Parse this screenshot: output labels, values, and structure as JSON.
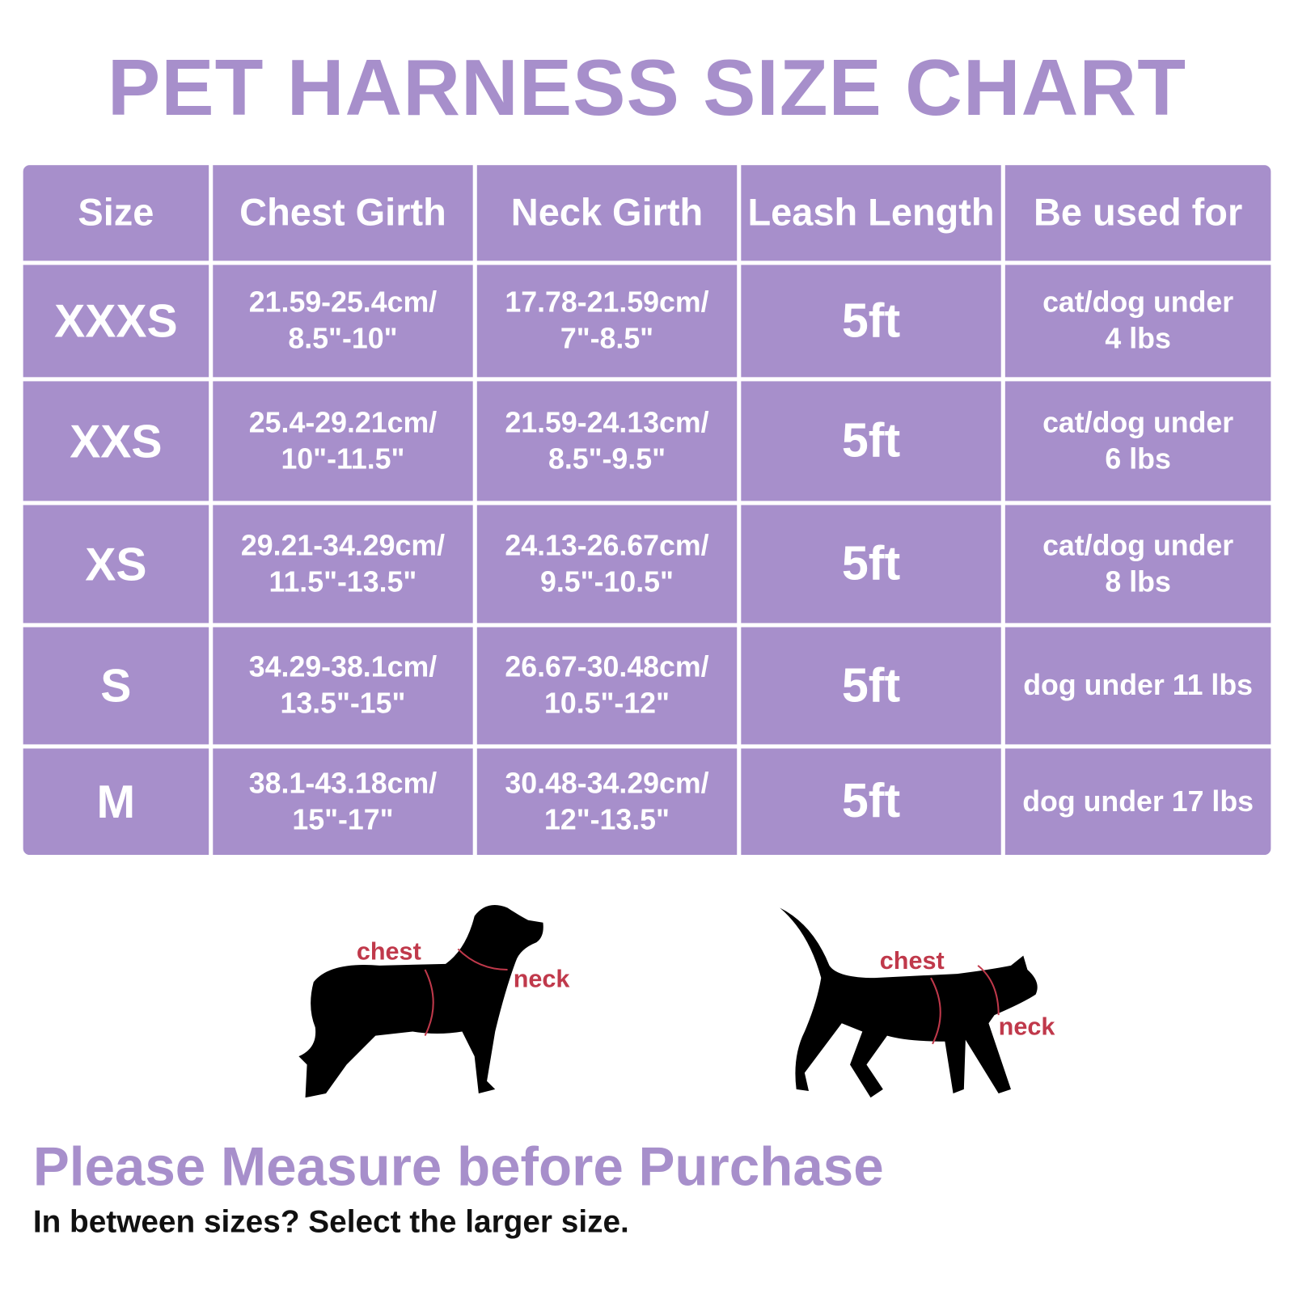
{
  "header": {
    "title": "PET HARNESS SIZE CHART"
  },
  "table": {
    "columns": [
      "Size",
      "Chest Girth",
      "Neck Girth",
      "Leash Length",
      "Be used for"
    ],
    "rows": [
      [
        "XXXS",
        "21.59-25.4cm/\n8.5\"-10\"",
        "17.78-21.59cm/\n7\"-8.5\"",
        "5ft",
        "cat/dog under\n4 lbs"
      ],
      [
        "XXS",
        "25.4-29.21cm/\n10\"-11.5\"",
        "21.59-24.13cm/\n8.5\"-9.5\"",
        "5ft",
        "cat/dog under\n6 lbs"
      ],
      [
        "XS",
        "29.21-34.29cm/\n11.5\"-13.5\"",
        "24.13-26.67cm/\n9.5\"-10.5\"",
        "5ft",
        "cat/dog under\n8 lbs"
      ],
      [
        "S",
        "34.29-38.1cm/\n13.5\"-15\"",
        "26.67-30.48cm/\n10.5\"-12\"",
        "5ft",
        "dog under 11 lbs"
      ],
      [
        "M",
        "38.1-43.18cm/\n15\"-17\"",
        "30.48-34.29cm/\n12\"-13.5\"",
        "5ft",
        "dog under 17 lbs"
      ]
    ]
  },
  "figures": {
    "dog": {
      "chest": "chest",
      "neck": "neck"
    },
    "cat": {
      "chest": "chest",
      "neck": "neck"
    }
  },
  "footer": {
    "heading": "Please Measure before Purchase",
    "note": "In between sizes? Select the larger size."
  }
}
